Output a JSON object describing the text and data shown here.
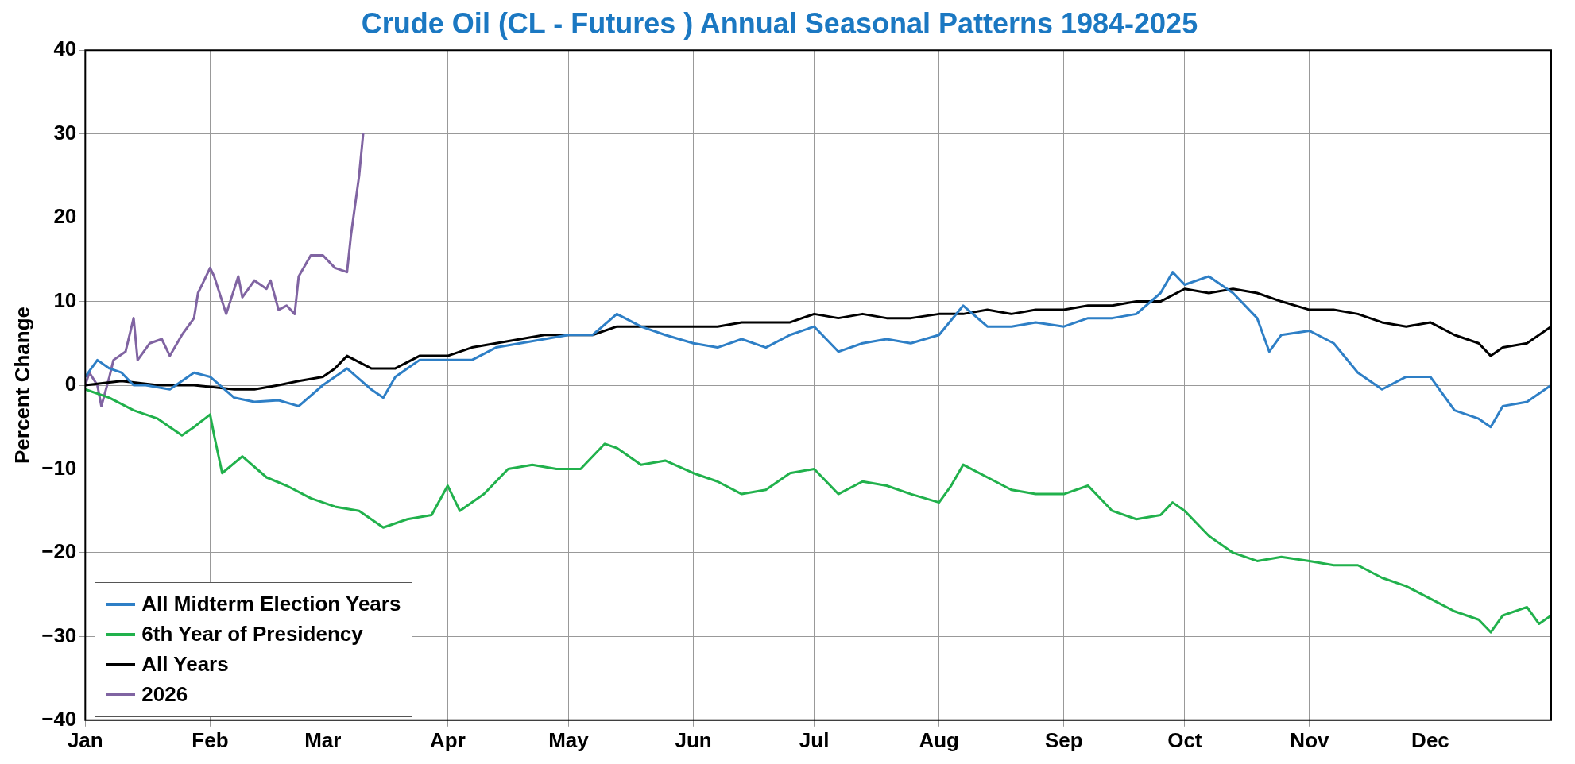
{
  "chart_data": {
    "type": "line",
    "title": "Crude Oil (CL - Futures ) Annual Seasonal Patterns 1984-2025",
    "ylabel": "Percent Change",
    "xlim": [
      "--01-01",
      "--12-31"
    ],
    "xticks": [
      {
        "value": "--01-01",
        "label": "Jan"
      },
      {
        "value": "--02-01",
        "label": "Feb"
      },
      {
        "value": "--03-01",
        "label": "Mar"
      },
      {
        "value": "--04-01",
        "label": "Apr"
      },
      {
        "value": "--05-01",
        "label": "May"
      },
      {
        "value": "--06-01",
        "label": "Jun"
      },
      {
        "value": "--07-01",
        "label": "Jul"
      },
      {
        "value": "--08-01",
        "label": "Aug"
      },
      {
        "value": "--09-01",
        "label": "Sep"
      },
      {
        "value": "--10-01",
        "label": "Oct"
      },
      {
        "value": "--11-01",
        "label": "Nov"
      },
      {
        "value": "--12-01",
        "label": "Dec"
      }
    ],
    "ylim": [
      -40,
      40
    ],
    "yticks": [
      -40,
      -30,
      -20,
      -10,
      0,
      10,
      20,
      30,
      40
    ],
    "grid": true,
    "legend": "bottom left",
    "marker": "none",
    "line_style": "solid",
    "series": [
      {
        "name": "All Midterm Election Years",
        "color": "#2e7fc6",
        "x": [
          "--01-01",
          "--01-04",
          "--01-07",
          "--01-10",
          "--01-13",
          "--01-16",
          "--01-22",
          "--01-28",
          "--02-01",
          "--02-07",
          "--02-12",
          "--02-18",
          "--02-23",
          "--03-01",
          "--03-07",
          "--03-13",
          "--03-16",
          "--03-19",
          "--03-25",
          "--04-01",
          "--04-07",
          "--04-13",
          "--04-19",
          "--04-25",
          "--05-01",
          "--05-07",
          "--05-13",
          "--05-19",
          "--05-25",
          "--06-01",
          "--06-07",
          "--06-13",
          "--06-19",
          "--06-25",
          "--07-01",
          "--07-07",
          "--07-13",
          "--07-19",
          "--07-25",
          "--08-01",
          "--08-07",
          "--08-13",
          "--08-19",
          "--08-25",
          "--09-01",
          "--09-07",
          "--09-13",
          "--09-19",
          "--09-25",
          "--09-28",
          "--10-01",
          "--10-07",
          "--10-13",
          "--10-19",
          "--10-22",
          "--10-25",
          "--11-01",
          "--11-07",
          "--11-13",
          "--11-19",
          "--11-25",
          "--12-01",
          "--12-04",
          "--12-07",
          "--12-13",
          "--12-16",
          "--12-19",
          "--12-25",
          "--12-31"
        ],
        "values": [
          1,
          3,
          2,
          1.5,
          0,
          0,
          -0.5,
          1.5,
          1,
          -1.5,
          -2,
          -1.8,
          -2.5,
          0,
          2,
          -0.5,
          -1.5,
          1,
          3,
          3,
          3,
          4.5,
          5,
          5.5,
          6,
          6,
          8.5,
          7,
          6,
          5,
          4.5,
          5.5,
          4.5,
          6,
          7,
          4,
          5,
          5.5,
          5,
          6,
          9.5,
          7,
          7,
          7.5,
          7,
          8,
          8,
          8.5,
          11,
          13.5,
          12,
          13,
          11,
          8,
          4,
          6,
          6.5,
          5,
          1.5,
          -0.5,
          1,
          1,
          -1,
          -3,
          -4,
          -5,
          -2.5,
          -2,
          0
        ]
      },
      {
        "name": "6th Year of Presidency",
        "color": "#21b14c",
        "x": [
          "--01-01",
          "--01-07",
          "--01-13",
          "--01-19",
          "--01-25",
          "--01-28",
          "--02-01",
          "--02-02",
          "--02-04",
          "--02-09",
          "--02-15",
          "--02-20",
          "--02-26",
          "--03-04",
          "--03-10",
          "--03-16",
          "--03-22",
          "--03-28",
          "--04-01",
          "--04-04",
          "--04-10",
          "--04-16",
          "--04-22",
          "--04-28",
          "--05-04",
          "--05-10",
          "--05-13",
          "--05-19",
          "--05-25",
          "--06-01",
          "--06-07",
          "--06-13",
          "--06-19",
          "--06-25",
          "--07-01",
          "--07-07",
          "--07-13",
          "--07-19",
          "--07-25",
          "--08-01",
          "--08-04",
          "--08-07",
          "--08-13",
          "--08-19",
          "--08-25",
          "--09-01",
          "--09-07",
          "--09-13",
          "--09-19",
          "--09-25",
          "--09-28",
          "--10-01",
          "--10-07",
          "--10-13",
          "--10-19",
          "--10-25",
          "--11-01",
          "--11-07",
          "--11-13",
          "--11-19",
          "--11-25",
          "--12-01",
          "--12-07",
          "--12-13",
          "--12-16",
          "--12-19",
          "--12-25",
          "--12-28",
          "--12-31"
        ],
        "values": [
          -0.5,
          -1.5,
          -3,
          -4,
          -6,
          -5,
          -3.5,
          -6,
          -10.5,
          -8.5,
          -11,
          -12,
          -13.5,
          -14.5,
          -15,
          -17,
          -16,
          -15.5,
          -12,
          -15,
          -13,
          -10,
          -9.5,
          -10,
          -10,
          -7,
          -7.5,
          -9.5,
          -9,
          -10.5,
          -11.5,
          -13,
          -12.5,
          -10.5,
          -10,
          -13,
          -11.5,
          -12,
          -13,
          -14,
          -12,
          -9.5,
          -11,
          -12.5,
          -13,
          -13,
          -12,
          -15,
          -16,
          -15.5,
          -14,
          -15,
          -18,
          -20,
          -21,
          -20.5,
          -21,
          -21.5,
          -21.5,
          -23,
          -24,
          -25.5,
          -27,
          -28,
          -29.5,
          -27.5,
          -26.5,
          -28.5,
          -27.5
        ]
      },
      {
        "name": "All Years",
        "color": "#000000",
        "x": [
          "--01-01",
          "--01-10",
          "--01-19",
          "--01-28",
          "--02-07",
          "--02-12",
          "--02-18",
          "--02-23",
          "--03-01",
          "--03-04",
          "--03-07",
          "--03-13",
          "--03-19",
          "--03-25",
          "--04-01",
          "--04-07",
          "--04-13",
          "--04-19",
          "--04-25",
          "--05-01",
          "--05-07",
          "--05-13",
          "--05-19",
          "--05-25",
          "--06-01",
          "--06-07",
          "--06-13",
          "--06-19",
          "--06-25",
          "--07-01",
          "--07-07",
          "--07-13",
          "--07-19",
          "--07-25",
          "--08-01",
          "--08-07",
          "--08-13",
          "--08-19",
          "--08-25",
          "--09-01",
          "--09-07",
          "--09-13",
          "--09-19",
          "--09-25",
          "--10-01",
          "--10-07",
          "--10-13",
          "--10-19",
          "--10-25",
          "--11-01",
          "--11-07",
          "--11-13",
          "--11-19",
          "--11-25",
          "--12-01",
          "--12-07",
          "--12-13",
          "--12-16",
          "--12-19",
          "--12-25",
          "--12-31"
        ],
        "values": [
          0,
          0.5,
          0,
          0,
          -0.5,
          -0.5,
          0,
          0.5,
          1,
          2,
          3.5,
          2,
          2,
          3.5,
          3.5,
          4.5,
          5,
          5.5,
          6,
          6,
          6,
          7,
          7,
          7,
          7,
          7,
          7.5,
          7.5,
          7.5,
          8.5,
          8,
          8.5,
          8,
          8,
          8.5,
          8.5,
          9,
          8.5,
          9,
          9,
          9.5,
          9.5,
          10,
          10,
          11.5,
          11,
          11.5,
          11,
          10,
          9,
          9,
          8.5,
          7.5,
          7,
          7.5,
          6,
          5,
          3.5,
          4.5,
          5,
          7
        ]
      },
      {
        "name": "2026",
        "color": "#8064a2",
        "x": [
          "--01-01",
          "--01-02",
          "--01-04",
          "--01-05",
          "--01-07",
          "--01-08",
          "--01-11",
          "--01-13",
          "--01-14",
          "--01-17",
          "--01-20",
          "--01-22",
          "--01-25",
          "--01-28",
          "--01-29",
          "--02-01",
          "--02-02",
          "--02-05",
          "--02-08",
          "--02-09",
          "--02-12",
          "--02-15",
          "--02-16",
          "--02-18",
          "--02-20",
          "--02-22",
          "--02-23",
          "--02-26",
          "--03-01",
          "--03-04",
          "--03-07",
          "--03-08",
          "--03-10",
          "--03-11"
        ],
        "values": [
          0,
          1.5,
          0,
          -2.5,
          1,
          3,
          4,
          8,
          3,
          5,
          5.5,
          3.5,
          6,
          8,
          11,
          14,
          13,
          8.5,
          13,
          10.5,
          12.5,
          11.5,
          12.5,
          9,
          9.5,
          8.5,
          13,
          15.5,
          15.5,
          14,
          13.5,
          18,
          25,
          30
        ]
      }
    ]
  }
}
